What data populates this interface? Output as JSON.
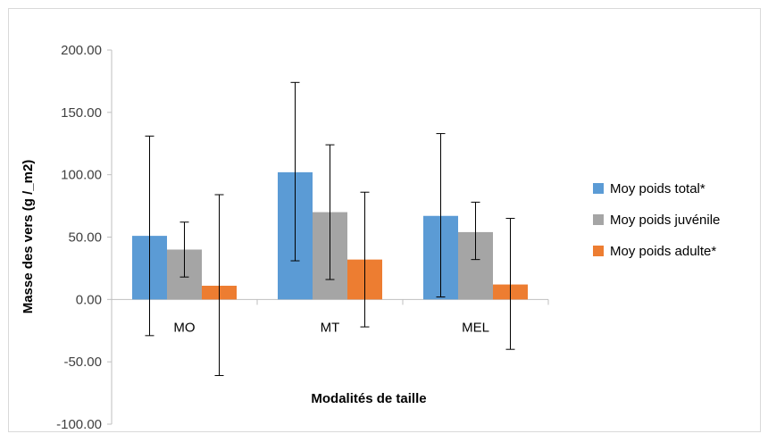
{
  "chart_data": {
    "type": "bar",
    "xlabel": "Modalités de taille",
    "ylabel": "Masse des vers (g /_m2)",
    "ylim": [
      -100,
      200
    ],
    "yticks": [
      200,
      150,
      100,
      50,
      0,
      -50,
      -100
    ],
    "ytick_labels": [
      "200.00",
      "150.00",
      "100.00",
      "50.00",
      "0.00",
      "-50.00",
      "-100.00"
    ],
    "categories": [
      "MO",
      "MT",
      "MEL"
    ],
    "series": [
      {
        "name": "Moy poids total*",
        "color": "#5b9bd5",
        "values": [
          51,
          102,
          67
        ],
        "error_low": [
          -29,
          31,
          2
        ],
        "error_high": [
          131,
          174,
          133
        ]
      },
      {
        "name": "Moy poids juvénile",
        "color": "#a5a5a5",
        "values": [
          40,
          70,
          54
        ],
        "error_low": [
          18,
          16,
          32
        ],
        "error_high": [
          62,
          124,
          78
        ]
      },
      {
        "name": "Moy poids adulte*",
        "color": "#ed7d31",
        "values": [
          11,
          32,
          12
        ],
        "error_low": [
          -61,
          -22,
          -40
        ],
        "error_high": [
          84,
          86,
          65
        ]
      }
    ],
    "legend_position": "right",
    "grid": false
  }
}
